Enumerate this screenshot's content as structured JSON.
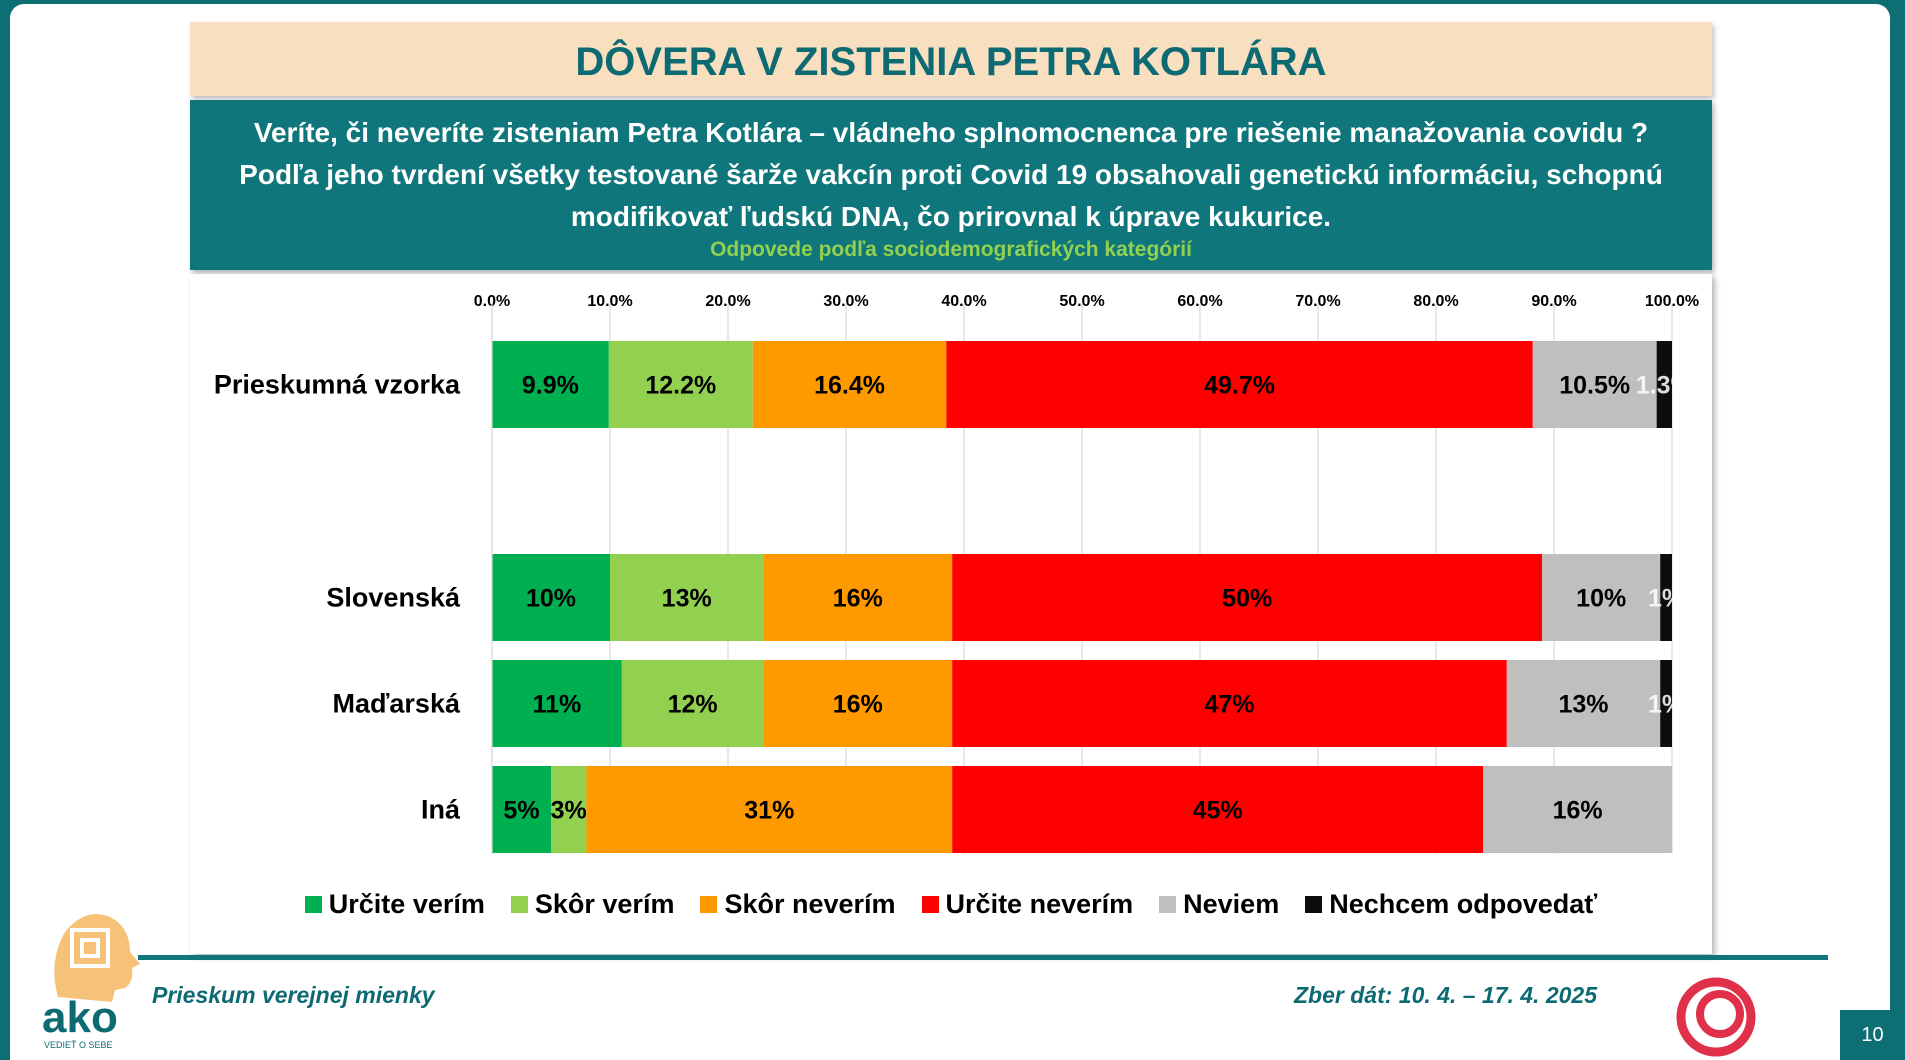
{
  "title": "DÔVERA V ZISTENIA PETRA KOTLÁRA",
  "question": "Veríte, či neveríte zisteniam Petra Kotlára – vládneho splnomocnenca pre riešenie manažovania covidu ? Podľa jeho tvrdení všetky testované šarže vakcín proti Covid 19 obsahovali genetickú informáciu, schopnú modifikovať ľudskú DNA, čo prirovnal k úprave kukurice.",
  "subtitle": "Odpovede podľa sociodemografických kategórií",
  "footer": {
    "left": "Prieskum verejnej mienky",
    "right": "Zber dát: 10. 4. – 17. 4. 2025",
    "page": "10"
  },
  "logo": {
    "text": "ako",
    "tagline": "VEDIEŤ O SEBE"
  },
  "chart_data": {
    "type": "bar",
    "orientation": "horizontal",
    "stacked": true,
    "categories": [
      "Prieskumná vzorka",
      "Slovenská",
      "Maďarská",
      "Iná"
    ],
    "xlim": [
      0,
      100
    ],
    "x_ticks": [
      "0.0%",
      "10.0%",
      "20.0%",
      "30.0%",
      "40.0%",
      "50.0%",
      "60.0%",
      "70.0%",
      "80.0%",
      "90.0%",
      "100.0%"
    ],
    "grid": true,
    "legend_position": "bottom",
    "series": [
      {
        "name": "Určite verím",
        "color": "#00b050",
        "values": [
          9.9,
          10,
          11,
          5
        ],
        "labels": [
          "9.9%",
          "10%",
          "11%",
          "5%"
        ],
        "label_color": "#000000"
      },
      {
        "name": "Skôr verím",
        "color": "#92d050",
        "values": [
          12.2,
          13,
          12,
          3
        ],
        "labels": [
          "12.2%",
          "13%",
          "12%",
          "3%"
        ],
        "label_color": "#000000"
      },
      {
        "name": "Skôr neverím",
        "color": "#ff9900",
        "values": [
          16.4,
          16,
          16,
          31
        ],
        "labels": [
          "16.4%",
          "16%",
          "16%",
          "31%"
        ],
        "label_color": "#000000"
      },
      {
        "name": "Určite neverím",
        "color": "#ff0000",
        "values": [
          49.7,
          50,
          47,
          45
        ],
        "labels": [
          "49.7%",
          "50%",
          "47%",
          "45%"
        ],
        "label_color": "#000000"
      },
      {
        "name": "Neviem",
        "color": "#bfbfbf",
        "values": [
          10.5,
          10,
          13,
          16
        ],
        "labels": [
          "10.5%",
          "10%",
          "13%",
          "16%"
        ],
        "label_color": "#000000"
      },
      {
        "name": "Nechcem odpovedať",
        "color": "#0d0d0d",
        "values": [
          1.3,
          1,
          1,
          0
        ],
        "labels": [
          "1.3%",
          "1%",
          "1%",
          ""
        ],
        "label_color": "#ffffff"
      }
    ]
  }
}
